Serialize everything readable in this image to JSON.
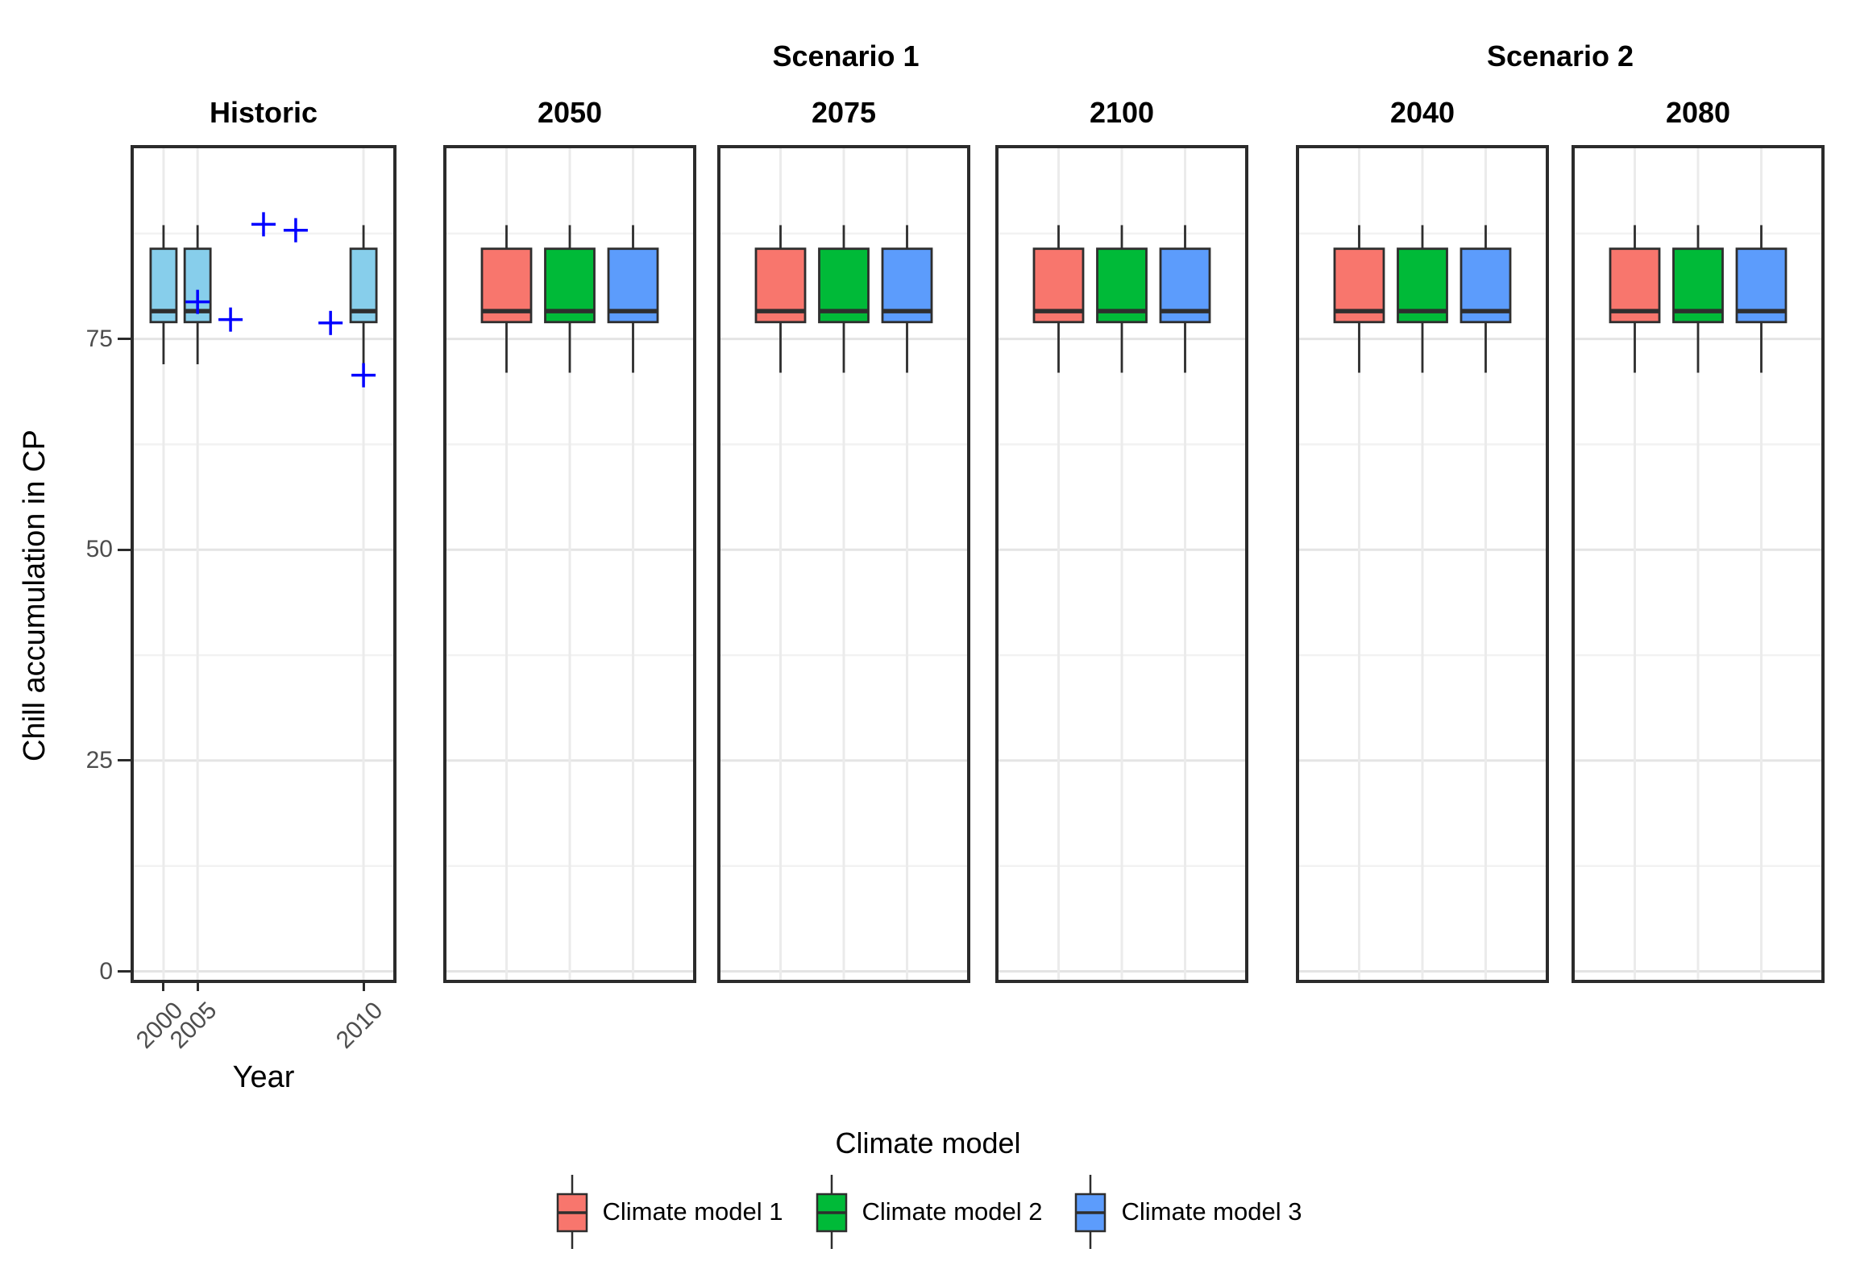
{
  "figure": {
    "scenario_headers": [
      {
        "label": "Scenario 1"
      },
      {
        "label": "Scenario 2"
      }
    ],
    "y_axis": {
      "title": "Chill accumulation in CP",
      "tick_labels": [
        "0",
        "25",
        "50",
        "75"
      ],
      "tick_values": [
        0,
        25,
        50,
        75
      ]
    },
    "x_axis": {
      "title": "Year",
      "tick_labels": [
        "2000",
        "2005",
        "2010"
      ]
    },
    "legend": {
      "title": "Climate model",
      "items": [
        {
          "label": "Climate model 1",
          "color": "#F8766D"
        },
        {
          "label": "Climate model 2",
          "color": "#00BA38"
        },
        {
          "label": "Climate model 3",
          "color": "#5C9CFC"
        }
      ]
    }
  },
  "chart_data": {
    "type": "boxplot",
    "description": "Faceted boxplots of chill accumulation (CP). Historic panel: skyblue boxplots of simulated chill for 2000, 2005, 2010 plus blue cross markers of observed chill for individual years. Future panels grouped under Scenario 1 (2050, 2075, 2100) and Scenario 2 (2040, 2080), each with one boxplot per climate model.",
    "ylabel": "Chill accumulation in CP",
    "xlabel": "Year",
    "ylim": [
      -1,
      98
    ],
    "grid": {
      "major_y": [
        0,
        25,
        50,
        75
      ],
      "minor_y": [
        12.5,
        37.5,
        62.5,
        87.5
      ]
    },
    "point_marker": {
      "shape": "plus",
      "color": "#0000FF"
    },
    "box_style": {
      "stroke": "#2e2e2e",
      "historic_fill": "#87CEEB"
    },
    "panels": [
      {
        "title": "Historic",
        "scenario": null,
        "boxes": [
          {
            "label": "2000",
            "fill": "#87CEEB",
            "low": 72,
            "q1": 77,
            "median": 78.3,
            "q3": 85.7,
            "high": 88.5
          },
          {
            "label": "2005",
            "fill": "#87CEEB",
            "low": 72,
            "q1": 77,
            "median": 78.3,
            "q3": 85.7,
            "high": 88.5
          },
          {
            "label": "2010",
            "fill": "#87CEEB",
            "low": 72,
            "q1": 77,
            "median": 78.3,
            "q3": 85.7,
            "high": 88.5
          }
        ],
        "points": [
          {
            "year": 2005,
            "value": 79.4
          },
          {
            "year": 2006,
            "value": 77.3
          },
          {
            "year": 2007,
            "value": 88.6
          },
          {
            "year": 2008,
            "value": 87.9
          },
          {
            "year": 2009,
            "value": 76.9
          },
          {
            "year": 2010,
            "value": 70.7
          }
        ]
      },
      {
        "title": "2050",
        "scenario": "Scenario 1",
        "boxes": [
          {
            "label": "Climate model 1",
            "fill": "#F8766D",
            "low": 71,
            "q1": 77,
            "median": 78.3,
            "q3": 85.7,
            "high": 88.5
          },
          {
            "label": "Climate model 2",
            "fill": "#00BA38",
            "low": 71,
            "q1": 77,
            "median": 78.3,
            "q3": 85.7,
            "high": 88.5
          },
          {
            "label": "Climate model 3",
            "fill": "#5C9CFC",
            "low": 71,
            "q1": 77,
            "median": 78.3,
            "q3": 85.7,
            "high": 88.5
          }
        ],
        "points": []
      },
      {
        "title": "2075",
        "scenario": "Scenario 1",
        "boxes": [
          {
            "label": "Climate model 1",
            "fill": "#F8766D",
            "low": 71,
            "q1": 77,
            "median": 78.3,
            "q3": 85.7,
            "high": 88.5
          },
          {
            "label": "Climate model 2",
            "fill": "#00BA38",
            "low": 71,
            "q1": 77,
            "median": 78.3,
            "q3": 85.7,
            "high": 88.5
          },
          {
            "label": "Climate model 3",
            "fill": "#5C9CFC",
            "low": 71,
            "q1": 77,
            "median": 78.3,
            "q3": 85.7,
            "high": 88.5
          }
        ],
        "points": []
      },
      {
        "title": "2100",
        "scenario": "Scenario 1",
        "boxes": [
          {
            "label": "Climate model 1",
            "fill": "#F8766D",
            "low": 71,
            "q1": 77,
            "median": 78.3,
            "q3": 85.7,
            "high": 88.5
          },
          {
            "label": "Climate model 2",
            "fill": "#00BA38",
            "low": 71,
            "q1": 77,
            "median": 78.3,
            "q3": 85.7,
            "high": 88.5
          },
          {
            "label": "Climate model 3",
            "fill": "#5C9CFC",
            "low": 71,
            "q1": 77,
            "median": 78.3,
            "q3": 85.7,
            "high": 88.5
          }
        ],
        "points": []
      },
      {
        "title": "2040",
        "scenario": "Scenario 2",
        "boxes": [
          {
            "label": "Climate model 1",
            "fill": "#F8766D",
            "low": 71,
            "q1": 77,
            "median": 78.3,
            "q3": 85.7,
            "high": 88.5
          },
          {
            "label": "Climate model 2",
            "fill": "#00BA38",
            "low": 71,
            "q1": 77,
            "median": 78.3,
            "q3": 85.7,
            "high": 88.5
          },
          {
            "label": "Climate model 3",
            "fill": "#5C9CFC",
            "low": 71,
            "q1": 77,
            "median": 78.3,
            "q3": 85.7,
            "high": 88.5
          }
        ],
        "points": []
      },
      {
        "title": "2080",
        "scenario": "Scenario 2",
        "boxes": [
          {
            "label": "Climate model 1",
            "fill": "#F8766D",
            "low": 71,
            "q1": 77,
            "median": 78.3,
            "q3": 85.7,
            "high": 88.5
          },
          {
            "label": "Climate model 2",
            "fill": "#00BA38",
            "low": 71,
            "q1": 77,
            "median": 78.3,
            "q3": 85.7,
            "high": 88.5
          },
          {
            "label": "Climate model 3",
            "fill": "#5C9CFC",
            "low": 71,
            "q1": 77,
            "median": 78.3,
            "q3": 85.7,
            "high": 88.5
          }
        ],
        "points": []
      }
    ]
  }
}
